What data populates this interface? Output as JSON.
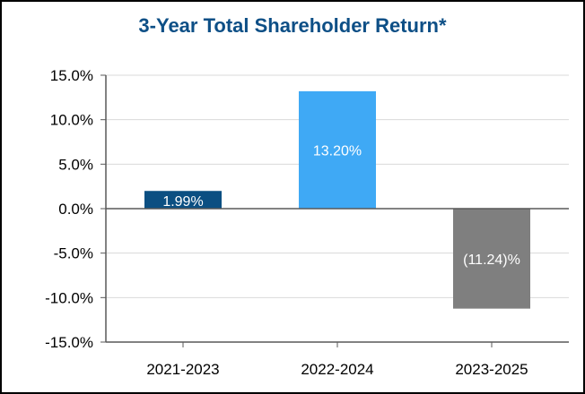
{
  "chart_data": {
    "type": "bar",
    "title": "3-Year Total Shareholder Return*",
    "xlabel": "",
    "ylabel": "",
    "categories": [
      "2021-2023",
      "2022-2024",
      "2023-2025"
    ],
    "values": [
      1.99,
      13.2,
      -11.24
    ],
    "data_labels": [
      "1.99%",
      "13.20%",
      "(11.24)%"
    ],
    "bar_colors": [
      "#0b4f82",
      "#3fa9f5",
      "#7f7f7f"
    ],
    "ylim": [
      -15,
      15
    ],
    "yticks": [
      15,
      10,
      5,
      0,
      -5,
      -10,
      -15
    ],
    "ytick_labels": [
      "15.0%",
      "10.0%",
      "5.0%",
      "0.0%",
      "-5.0%",
      "-10.0%",
      "-15.0%"
    ],
    "grid": true,
    "legend": "none"
  },
  "colors": {
    "title": "#0d4f86",
    "grid": "#d9d9d9",
    "axis": "#595959"
  }
}
